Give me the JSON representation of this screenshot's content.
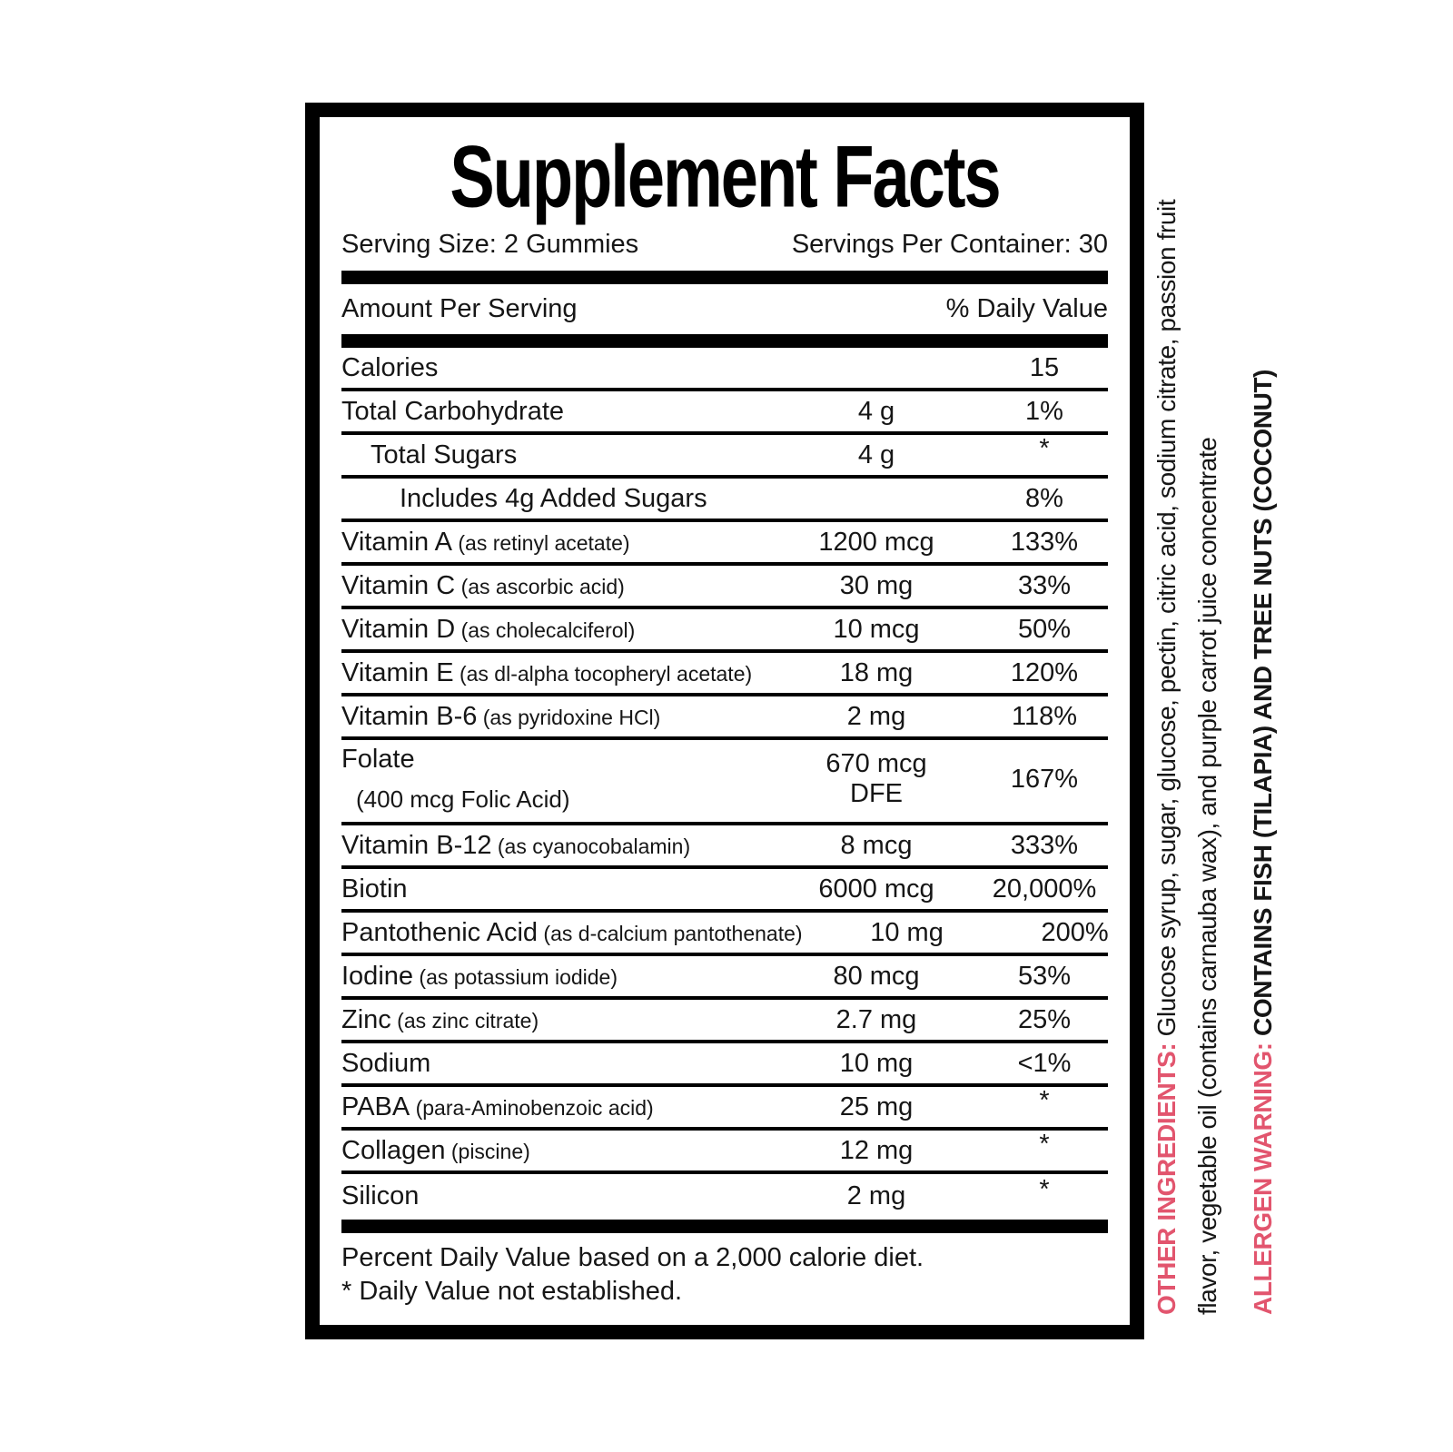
{
  "label": {
    "title": "Supplement Facts",
    "serving_size": "Serving Size: 2 Gummies",
    "servings_per_container": "Servings Per Container: 30",
    "column_headers": {
      "amount": "Amount Per Serving",
      "daily_value": "% Daily Value"
    },
    "rows": [
      {
        "name": "Calories",
        "amount": "",
        "dv": "15",
        "indent": 0
      },
      {
        "name": "Total Carbohydrate",
        "amount": "4 g",
        "dv": "1%",
        "indent": 0
      },
      {
        "name": "Total Sugars",
        "amount": "4 g",
        "dv": "*",
        "indent": 1
      },
      {
        "name": "Includes 4g Added Sugars",
        "amount": "",
        "dv": "8%",
        "indent": 2
      },
      {
        "name": "Vitamin A",
        "detail": "(as retinyl acetate)",
        "amount": "1200 mcg",
        "dv": "133%",
        "indent": 0
      },
      {
        "name": "Vitamin C",
        "detail": "(as ascorbic acid)",
        "amount": "30 mg",
        "dv": "33%",
        "indent": 0
      },
      {
        "name": "Vitamin D",
        "detail": "(as cholecalciferol)",
        "amount": "10 mcg",
        "dv": "50%",
        "indent": 0
      },
      {
        "name": "Vitamin E",
        "detail": "(as dl-alpha tocopheryl acetate)",
        "amount": "18 mg",
        "dv": "120%",
        "indent": 0
      },
      {
        "name": "Vitamin B-6",
        "detail": "(as pyridoxine HCl)",
        "amount": "2 mg",
        "dv": "118%",
        "indent": 0
      },
      {
        "name": "Folate",
        "name_line2": "(400 mcg Folic Acid)",
        "amount": "670 mcg",
        "amount_line2": "DFE",
        "dv": "167%",
        "indent": 0
      },
      {
        "name": "Vitamin B-12",
        "detail": "(as cyanocobalamin)",
        "amount": "8 mcg",
        "dv": "333%",
        "indent": 0
      },
      {
        "name": "Biotin",
        "amount": "6000 mcg",
        "dv": "20,000%",
        "indent": 0
      },
      {
        "name": "Pantothenic Acid",
        "detail": "(as d-calcium pantothenate)",
        "amount": "10 mg",
        "dv": "200%",
        "indent": 0
      },
      {
        "name": "Iodine",
        "detail": "(as potassium iodide)",
        "amount": "80 mcg",
        "dv": "53%",
        "indent": 0
      },
      {
        "name": "Zinc",
        "detail": "(as zinc citrate)",
        "amount": "2.7 mg",
        "dv": "25%",
        "indent": 0
      },
      {
        "name": "Sodium",
        "amount": "10 mg",
        "dv": "<1%",
        "indent": 0
      },
      {
        "name": "PABA",
        "detail": "(para-Aminobenzoic acid)",
        "amount": "25 mg",
        "dv": "*",
        "indent": 0
      },
      {
        "name": "Collagen",
        "detail": "(piscine)",
        "amount": "12 mg",
        "dv": "*",
        "indent": 0
      },
      {
        "name": "Silicon",
        "amount": "2 mg",
        "dv": "*",
        "indent": 0
      }
    ],
    "footnotes": [
      "Percent Daily Value based on a 2,000 calorie diet.",
      "* Daily Value not established."
    ]
  },
  "side_text": {
    "other_ingredients_label": "OTHER INGREDIENTS:",
    "other_ingredients_line1": "Glucose syrup, sugar, glucose, pectin, citric acid, sodium citrate, passion fruit",
    "other_ingredients_line2": "flavor, vegetable oil (contains carnauba wax), and purple carrot juice concentrate",
    "allergen_label": "ALLERGEN WARNING:",
    "allergen_text": "CONTAINS FISH (TILAPIA) AND TREE NUTS (COCONUT)"
  },
  "colors": {
    "accent_pink": "#e2556e",
    "text_black": "#161616",
    "border_black": "#000000"
  }
}
